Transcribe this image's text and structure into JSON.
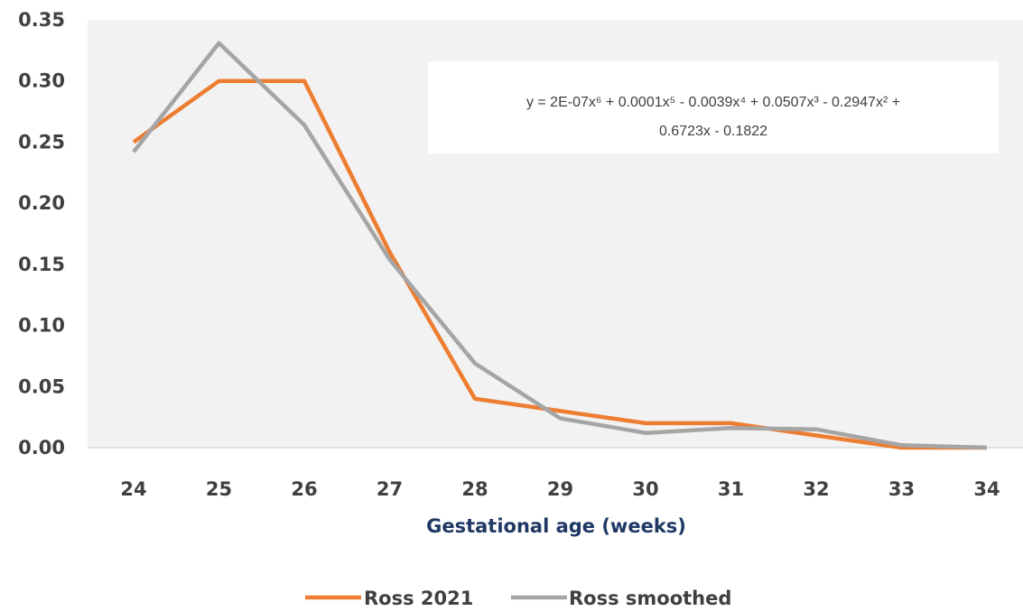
{
  "chart_data": {
    "type": "line",
    "x": [
      24,
      25,
      26,
      27,
      28,
      29,
      30,
      31,
      32,
      33,
      34
    ],
    "series": [
      {
        "name": "Ross 2021",
        "color": "#ed7d31",
        "values": [
          0.25,
          0.3,
          0.3,
          0.16,
          0.04,
          0.03,
          0.02,
          0.02,
          0.01,
          0.0,
          0.0
        ]
      },
      {
        "name": "Ross smoothed",
        "color": "#a5a5a5",
        "values": [
          0.242,
          0.331,
          0.264,
          0.154,
          0.069,
          0.024,
          0.012,
          0.016,
          0.015,
          0.002,
          0.0
        ]
      }
    ],
    "title": "",
    "xlabel": "Gestational age (weeks)",
    "ylabel": "",
    "ylim": [
      0,
      0.35
    ],
    "yticks": [
      "0.00",
      "0.05",
      "0.10",
      "0.15",
      "0.20",
      "0.25",
      "0.30",
      "0.35"
    ],
    "xticks": [
      "24",
      "25",
      "26",
      "27",
      "28",
      "29",
      "30",
      "31",
      "32",
      "33",
      "34"
    ],
    "annotation": {
      "line1": "y = 2E-07x⁶ + 0.0001x⁵ - 0.0039x⁴ + 0.0507x³ - 0.2947x² +",
      "line2": "0.6723x - 0.1822"
    },
    "grid": false,
    "plot_background": "#f2f2f2",
    "legend_position": "bottom"
  }
}
